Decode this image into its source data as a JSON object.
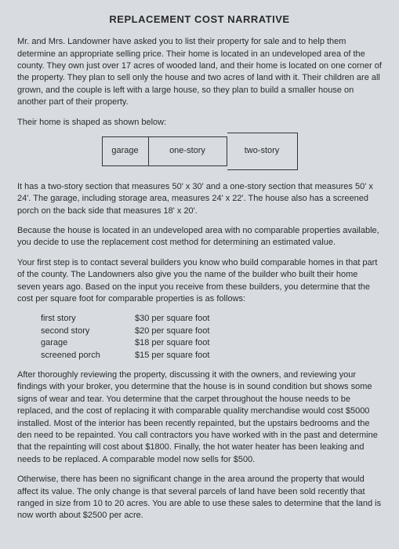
{
  "title": "REPLACEMENT COST NARRATIVE",
  "para1": "Mr. and Mrs. Landowner have asked you to list their property for sale and to help them determine an appropriate selling price. Their home is located in an undeveloped area of the county. They own just over 17 acres of wooded land, and their home is located on one corner of the property. They plan to sell only the house and two acres of land with it. Their children are all grown, and the couple is left with a large house, so they plan to build a smaller house on another part of their property.",
  "para2": "Their home is shaped as shown below:",
  "diagram": {
    "garage": "garage",
    "onestory": "one-story",
    "twostory": "two-story"
  },
  "para3": "It has a two-story section that measures 50' x 30' and a one-story section that measures 50' x 24'. The garage, including storage area, measures 24' x 22'. The house also has a screened porch on the back side that measures 18' x 20'.",
  "para4": "Because the house is located in an undeveloped area with no comparable properties available, you decide to use the replacement cost method for determining an estimated value.",
  "para5": "Your first step is to contact several builders you know who build comparable homes in that part of the county. The Landowners also give you the name of the builder who built their home seven years ago. Based on the input you receive from these builders, you determine that the cost per square foot for comparable properties is as follows:",
  "costs": [
    {
      "label": "first story",
      "value": "$30 per square foot"
    },
    {
      "label": "second story",
      "value": "$20 per square foot"
    },
    {
      "label": "garage",
      "value": "$18 per square foot"
    },
    {
      "label": "screened porch",
      "value": "$15 per square foot"
    }
  ],
  "para6": "After thoroughly reviewing the property, discussing it with the owners, and reviewing your findings with your broker, you determine that the house is in sound condition but shows some signs of wear and tear. You determine that the carpet throughout the house needs to be replaced, and the cost of replacing it with comparable quality merchandise would cost $5000 installed. Most of the interior has been recently repainted, but the upstairs bedrooms and the den need to be repainted. You call contractors you have worked with in the past and determine that the repainting will cost about $1800. Finally, the hot water heater has been leaking and needs to be replaced. A comparable model now sells for $500.",
  "para7": "Otherwise, there has been no significant change in the area around the property that would affect its value. The only change is that several parcels of land have been sold recently that ranged in size from 10 to 20 acres. You are able to use these sales to determine that the land is now worth about $2500 per acre."
}
